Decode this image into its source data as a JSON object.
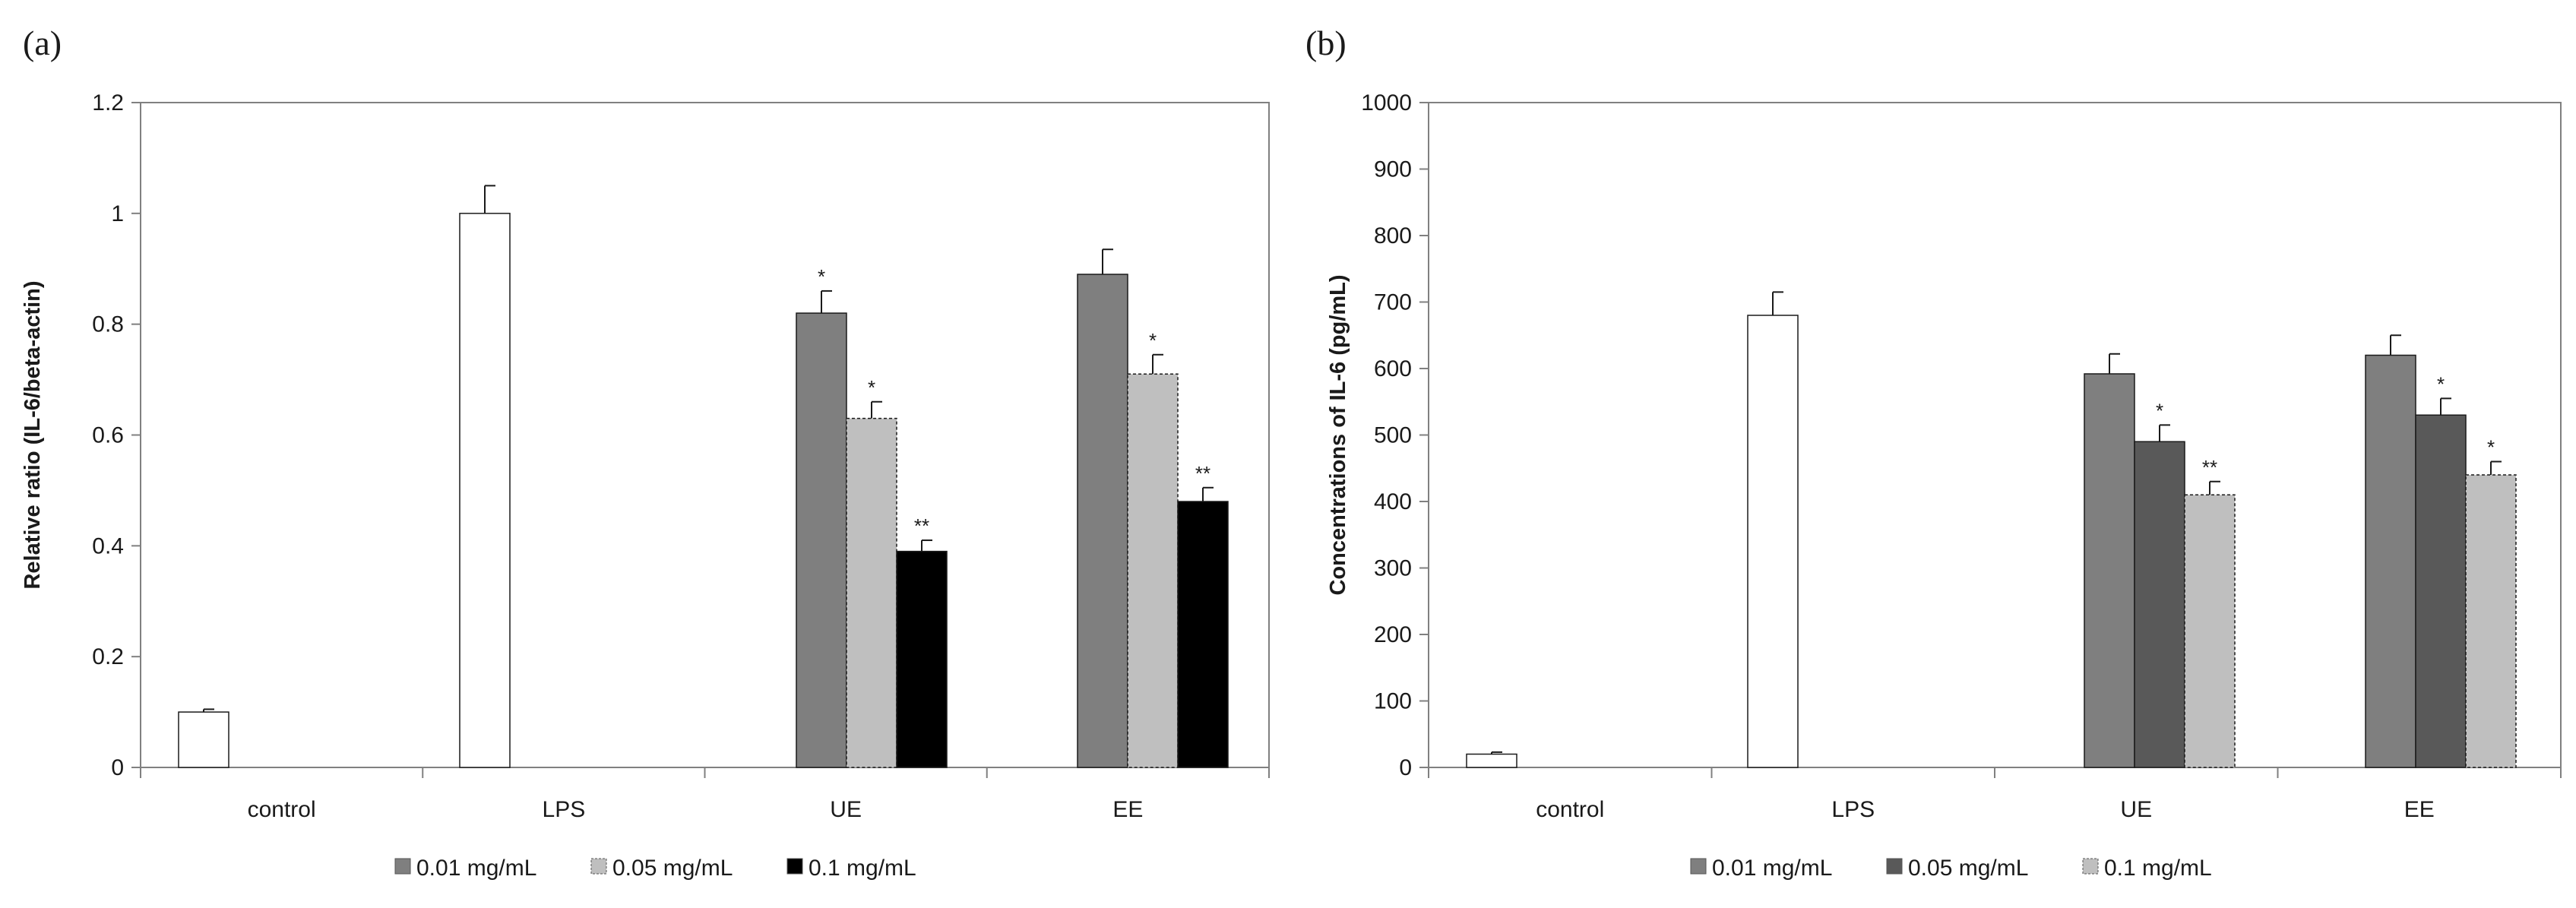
{
  "chart_data": [
    {
      "panel": "(a)",
      "type": "bar",
      "title": "",
      "xlabel": "",
      "ylabel": "Relative ratio (IL-6/beta-actin)",
      "ylim": [
        0,
        1.2
      ],
      "yticks": [
        "0",
        "0.2",
        "0.4",
        "0.6",
        "0.8",
        "1",
        "1.2"
      ],
      "ytick_values": [
        0,
        0.2,
        0.4,
        0.6,
        0.8,
        1.0,
        1.2
      ],
      "grid": false,
      "legend_position": "bottom",
      "categories": [
        "control",
        "LPS",
        "UE",
        "EE"
      ],
      "single_bars": [
        {
          "category": "control",
          "value": 0.1,
          "error": 0.005,
          "color": "#ffffff",
          "dashed": false
        },
        {
          "category": "LPS",
          "value": 1.0,
          "error": 0.05,
          "color": "#ffffff",
          "dashed": false
        }
      ],
      "series": [
        {
          "name": "0.01 mg/mL",
          "color": "#7f7f7f",
          "dashed": false,
          "values": [
            null,
            null,
            0.82,
            0.89
          ],
          "errors": [
            null,
            null,
            0.04,
            0.045
          ],
          "sig": [
            null,
            null,
            "*",
            ""
          ]
        },
        {
          "name": "0.05 mg/mL",
          "color": "#bfbfbf",
          "dashed": true,
          "values": [
            null,
            null,
            0.63,
            0.71
          ],
          "errors": [
            null,
            null,
            0.03,
            0.035
          ],
          "sig": [
            null,
            null,
            "*",
            "*"
          ]
        },
        {
          "name": "0.1 mg/mL",
          "color": "#000000",
          "dashed": false,
          "values": [
            null,
            null,
            0.39,
            0.48
          ],
          "errors": [
            null,
            null,
            0.02,
            0.025
          ],
          "sig": [
            null,
            null,
            "**",
            "**"
          ]
        }
      ]
    },
    {
      "panel": "(b)",
      "type": "bar",
      "title": "",
      "xlabel": "",
      "ylabel": "Concentrations of IL-6 (pg/mL)",
      "ylim": [
        0,
        1000
      ],
      "yticks": [
        "0",
        "100",
        "200",
        "300",
        "400",
        "500",
        "600",
        "700",
        "800",
        "900",
        "1000"
      ],
      "ytick_values": [
        0,
        100,
        200,
        300,
        400,
        500,
        600,
        700,
        800,
        900,
        1000
      ],
      "grid": false,
      "legend_position": "bottom",
      "categories": [
        "control",
        "LPS",
        "UE",
        "EE"
      ],
      "single_bars": [
        {
          "category": "control",
          "value": 20,
          "error": 3,
          "color": "#ffffff",
          "dashed": false
        },
        {
          "category": "LPS",
          "value": 680,
          "error": 35,
          "color": "#ffffff",
          "dashed": false
        }
      ],
      "series": [
        {
          "name": "0.01 mg/mL",
          "color": "#7f7f7f",
          "dashed": false,
          "values": [
            null,
            null,
            592,
            620
          ],
          "errors": [
            null,
            null,
            30,
            30
          ],
          "sig": [
            null,
            null,
            "",
            ""
          ]
        },
        {
          "name": "0.05 mg/mL",
          "color": "#595959",
          "dashed": false,
          "values": [
            null,
            null,
            490,
            530
          ],
          "errors": [
            null,
            null,
            25,
            25
          ],
          "sig": [
            null,
            null,
            "*",
            "*"
          ]
        },
        {
          "name": "0.1 mg/mL",
          "color": "#bfbfbf",
          "dashed": true,
          "values": [
            null,
            null,
            410,
            440
          ],
          "errors": [
            null,
            null,
            20,
            20
          ],
          "sig": [
            null,
            null,
            "**",
            "*"
          ]
        }
      ]
    }
  ]
}
